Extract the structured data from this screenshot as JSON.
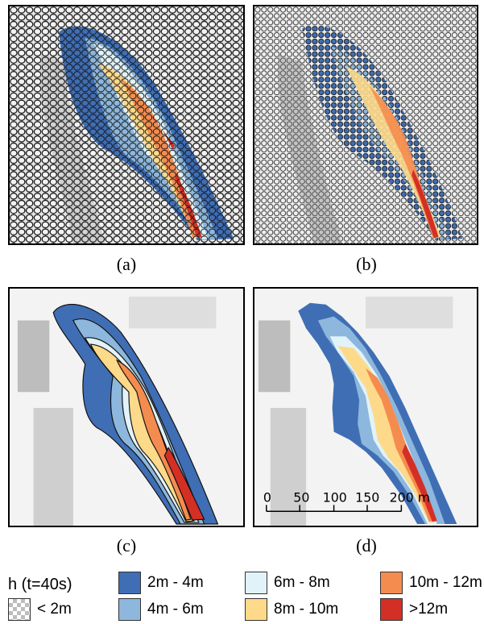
{
  "panels": [
    {
      "caption": "(a)"
    },
    {
      "caption": "(b)"
    },
    {
      "caption": "(c)"
    },
    {
      "caption": "(d)"
    }
  ],
  "scale_bar": {
    "ticks": [
      "0",
      "50",
      "100",
      "150",
      "200 m"
    ]
  },
  "legend": {
    "title": "h (t=40s)",
    "items": [
      {
        "label": "< 2m",
        "color": "checker"
      },
      {
        "label": "2m - 4m",
        "color": "#3f6eb5"
      },
      {
        "label": "4m - 6m",
        "color": "#8db7dc"
      },
      {
        "label": "6m - 8m",
        "color": "#e1f3f8"
      },
      {
        "label": "8m - 10m",
        "color": "#fdd98a"
      },
      {
        "label": "10m - 12m",
        "color": "#f58c4f"
      },
      {
        "label": ">12m",
        "color": "#d42f25"
      }
    ]
  }
}
